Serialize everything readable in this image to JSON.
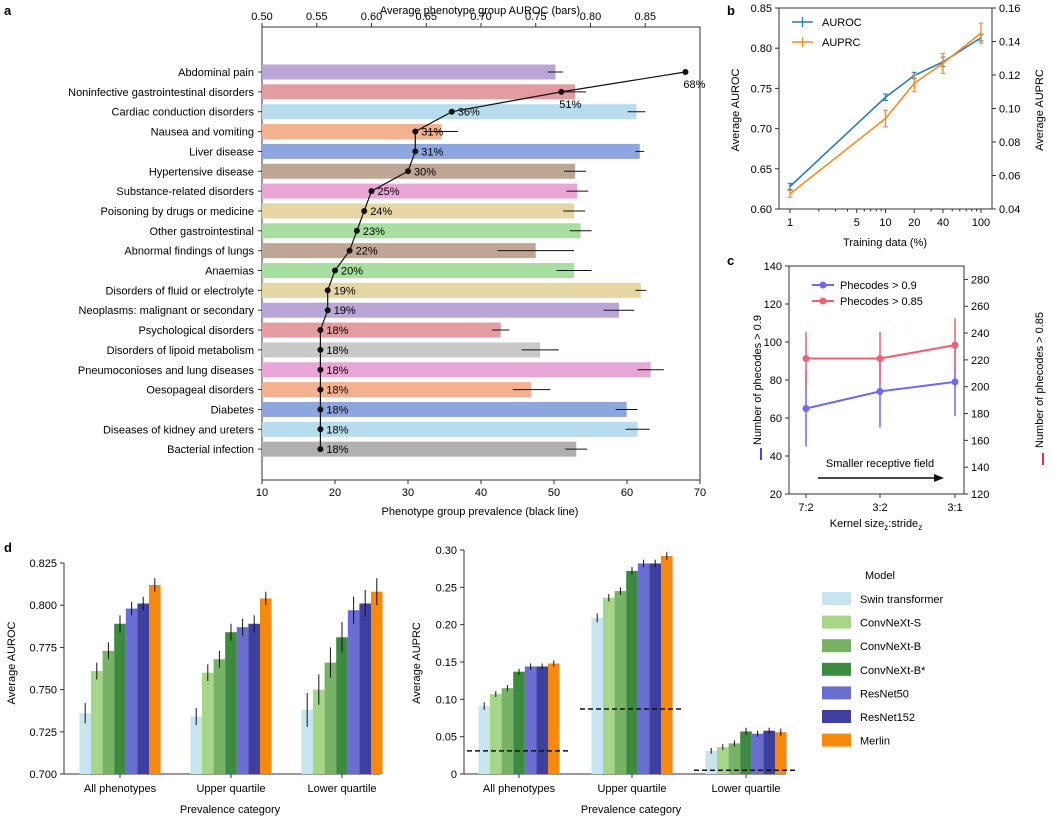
{
  "panel_labels": {
    "a": "a",
    "b": "b",
    "c": "c",
    "d": "d"
  },
  "chart_data": [
    {
      "panel": "a",
      "type": "bar",
      "title": "",
      "top_axis_label": "Average phenotype group AUROC (bars)",
      "bottom_axis_label": "Phenotype group prevalence (black line)",
      "auroc_axis": {
        "range": [
          0.5,
          0.9
        ],
        "ticks": [
          "0.50",
          "0.55",
          "0.60",
          "0.65",
          "0.70",
          "0.75",
          "0.80",
          "0.85"
        ]
      },
      "prevalence_axis": {
        "range": [
          10,
          70
        ],
        "ticks": [
          "10",
          "20",
          "30",
          "40",
          "50",
          "60",
          "70"
        ]
      },
      "categories": [
        "Abdominal pain",
        "Noninfective gastrointestinal disorders",
        "Cardiac conduction disorders",
        "Nausea and vomiting",
        "Liver disease",
        "Hypertensive disease",
        "Substance-related disorders",
        "Poisoning by drugs or medicine",
        "Other gastrointestinal",
        "Abnormal findings of lungs",
        "Anaemias",
        "Disorders of fluid or electrolyte",
        "Neoplasms: malignant or secondary",
        "Psychological disorders",
        "Disorders of lipoid metabolism",
        "Pneumoconioses and lung diseases",
        "Oesopageal disorders",
        "Diabetes",
        "Diseases of kidney and ureters",
        "Bacterial infection"
      ],
      "auroc": [
        0.768,
        0.786,
        0.842,
        0.664,
        0.845,
        0.786,
        0.788,
        0.785,
        0.791,
        0.75,
        0.785,
        0.846,
        0.826,
        0.718,
        0.754,
        0.855,
        0.746,
        0.833,
        0.843,
        0.787
      ],
      "auroc_err": [
        0.007,
        0.01,
        0.008,
        0.015,
        0.004,
        0.01,
        0.01,
        0.01,
        0.01,
        0.035,
        0.016,
        0.005,
        0.014,
        0.008,
        0.017,
        0.012,
        0.017,
        0.01,
        0.011,
        0.01
      ],
      "prevalence": [
        68,
        51,
        36,
        31,
        31,
        30,
        25,
        24,
        23,
        22,
        20,
        19,
        19,
        18,
        18,
        18,
        18,
        18,
        18,
        18
      ],
      "prevalence_labels": [
        "68%",
        "51%",
        "36%",
        "31%",
        "31%",
        "30%",
        "25%",
        "24%",
        "23%",
        "22%",
        "20%",
        "19%",
        "19%",
        "18%",
        "18%",
        "18%",
        "18%",
        "18%",
        "18%",
        "18%"
      ],
      "colors": [
        "#b9a6d6",
        "#e39ca0",
        "#b6dced",
        "#f2b28f",
        "#8ea6de",
        "#bea594",
        "#e7a6d6",
        "#e5d6a4",
        "#a8dea0",
        "#bea594",
        "#a8dea0",
        "#e5d6a4",
        "#b9a6d6",
        "#e39ca0",
        "#c9c9c9",
        "#e7a6d6",
        "#f2b28f",
        "#8ea6de",
        "#b6dced",
        "#b0b0b0"
      ]
    },
    {
      "panel": "b",
      "type": "line",
      "xlabel": "Training data (%)",
      "ylabel": "Average AUROC",
      "y2label": "Average AUPRC",
      "x_scale": "log",
      "x_ticks": [
        "1",
        "5",
        "10",
        "20",
        "40",
        "100"
      ],
      "ylim": [
        0.6,
        0.85
      ],
      "y_ticks": [
        "0.60",
        "0.65",
        "0.70",
        "0.75",
        "0.80",
        "0.85"
      ],
      "y2lim": [
        0.04,
        0.16
      ],
      "y2_ticks": [
        "0.04",
        "0.06",
        "0.08",
        "0.10",
        "0.12",
        "0.14",
        "0.16"
      ],
      "x": [
        1,
        10,
        20,
        40,
        100
      ],
      "series": [
        {
          "name": "AUROC",
          "axis": "left",
          "color": "#2f79b5",
          "values": [
            0.628,
            0.739,
            0.766,
            0.783,
            0.813
          ],
          "err": [
            0.004,
            0.004,
            0.004,
            0.006,
            0.004
          ]
        },
        {
          "name": "AUPRC",
          "axis": "right",
          "color": "#f28c28",
          "values": [
            0.049,
            0.094,
            0.115,
            0.127,
            0.145
          ],
          "err": [
            0.002,
            0.005,
            0.005,
            0.006,
            0.006
          ]
        }
      ]
    },
    {
      "panel": "c",
      "type": "line",
      "xlabel": "Kernel size_z:stride_z",
      "xlabel_main": "Kernel size",
      "xlabel_sub1": "z",
      "xlabel_mid": ":stride",
      "xlabel_sub2": "z",
      "ylabel": "Number of phecodes > 0.9",
      "y2label": "Number of phecodes > 0.85",
      "categories": [
        "7:2",
        "3:2",
        "3:1"
      ],
      "ylim": [
        20,
        140
      ],
      "y_ticks": [
        "20",
        "40",
        "60",
        "80",
        "100",
        "120",
        "140"
      ],
      "y2lim": [
        120,
        290
      ],
      "y2_ticks": [
        "120",
        "140",
        "160",
        "180",
        "200",
        "220",
        "240",
        "260",
        "280"
      ],
      "annotation": "Smaller receptive field",
      "series": [
        {
          "name": "Phecodes > 0.9",
          "axis": "left",
          "color": "#6b6bf0",
          "values": [
            65,
            74,
            79
          ],
          "err": [
            20,
            19,
            18
          ]
        },
        {
          "name": "Phecodes > 0.85",
          "axis": "right",
          "color": "#f06070",
          "values": [
            221,
            221,
            231
          ],
          "err": [
            20,
            20,
            20
          ]
        }
      ]
    },
    {
      "panel": "d-left",
      "type": "bar",
      "xlabel": "Prevalence category",
      "ylabel": "Average AUROC",
      "ylim": [
        0.7,
        0.825
      ],
      "y_ticks": [
        "0.700",
        "0.725",
        "0.750",
        "0.775",
        "0.800",
        "0.825"
      ],
      "categories": [
        "All phenotypes",
        "Upper quartile",
        "Lower quartile"
      ],
      "series": [
        {
          "name": "Swin transformer",
          "values": [
            0.736,
            0.734,
            0.738
          ],
          "err": [
            0.006,
            0.005,
            0.01
          ]
        },
        {
          "name": "ConvNeXt-S",
          "values": [
            0.761,
            0.76,
            0.75
          ],
          "err": [
            0.005,
            0.005,
            0.009
          ]
        },
        {
          "name": "ConvNeXt-B",
          "values": [
            0.773,
            0.768,
            0.766
          ],
          "err": [
            0.005,
            0.005,
            0.009
          ]
        },
        {
          "name": "ConvNeXt-B*",
          "values": [
            0.789,
            0.784,
            0.781
          ],
          "err": [
            0.005,
            0.005,
            0.009
          ]
        },
        {
          "name": "ResNet50",
          "values": [
            0.798,
            0.787,
            0.797
          ],
          "err": [
            0.004,
            0.005,
            0.008
          ]
        },
        {
          "name": "ResNet152",
          "values": [
            0.801,
            0.789,
            0.801
          ],
          "err": [
            0.004,
            0.005,
            0.008
          ]
        },
        {
          "name": "Merlin",
          "values": [
            0.812,
            0.804,
            0.808
          ],
          "err": [
            0.004,
            0.004,
            0.008
          ]
        }
      ]
    },
    {
      "panel": "d-right",
      "type": "bar",
      "xlabel": "Prevalence category",
      "ylabel": "Average AUPRC",
      "ylim": [
        0.0,
        0.3
      ],
      "y_ticks": [
        "0",
        "0.05",
        "0.10",
        "0.15",
        "0.20",
        "0.25",
        "0.30"
      ],
      "categories": [
        "All phenotypes",
        "Upper quartile",
        "Lower quartile"
      ],
      "baselines": [
        0.031,
        0.087,
        0.005
      ],
      "series": [
        {
          "name": "Swin transformer",
          "values": [
            0.091,
            0.209,
            0.031
          ],
          "err": [
            0.005,
            0.006,
            0.004
          ]
        },
        {
          "name": "ConvNeXt-S",
          "values": [
            0.107,
            0.236,
            0.036
          ],
          "err": [
            0.004,
            0.005,
            0.004
          ]
        },
        {
          "name": "ConvNeXt-B",
          "values": [
            0.115,
            0.245,
            0.041
          ],
          "err": [
            0.004,
            0.005,
            0.004
          ]
        },
        {
          "name": "ConvNeXt-B*",
          "values": [
            0.137,
            0.272,
            0.057
          ],
          "err": [
            0.004,
            0.005,
            0.005
          ]
        },
        {
          "name": "ResNet50",
          "values": [
            0.144,
            0.282,
            0.054
          ],
          "err": [
            0.004,
            0.005,
            0.004
          ]
        },
        {
          "name": "ResNet152",
          "values": [
            0.144,
            0.282,
            0.058
          ],
          "err": [
            0.004,
            0.005,
            0.004
          ]
        },
        {
          "name": "Merlin",
          "values": [
            0.148,
            0.292,
            0.056
          ],
          "err": [
            0.004,
            0.005,
            0.005
          ]
        }
      ]
    }
  ],
  "legend_d": {
    "title": "Model",
    "entries": [
      "Swin transformer",
      "ConvNeXt-S",
      "ConvNeXt-B",
      "ConvNeXt-B*",
      "ResNet50",
      "ResNet152",
      "Merlin"
    ],
    "colors": [
      "#c8e4ef",
      "#a6d68a",
      "#78b266",
      "#3d8a40",
      "#6a6ed0",
      "#3e3f9e",
      "#f58a0f"
    ]
  }
}
